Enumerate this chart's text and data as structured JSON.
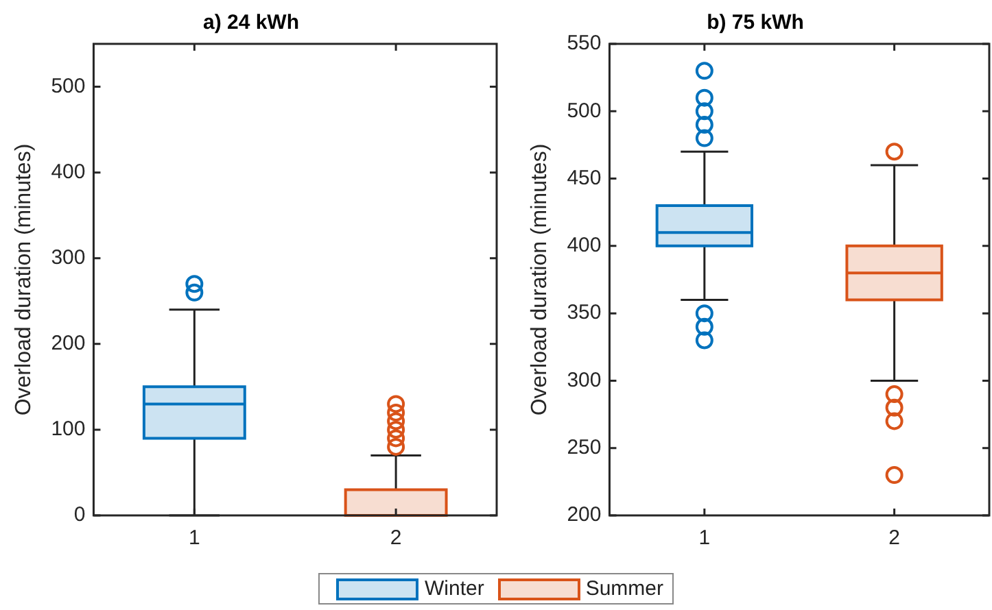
{
  "chart_data": [
    {
      "type": "box",
      "title": "a) 24 kWh",
      "ylabel": "Overload duration (minutes)",
      "categories": [
        "1",
        "2"
      ],
      "ylim": [
        0,
        550
      ],
      "yticks": [
        0,
        100,
        200,
        300,
        400,
        500
      ],
      "legend": "bottom",
      "series": [
        {
          "name": "Winter",
          "color": "#0072bd",
          "boxes": [
            {
              "low": 0,
              "q1": 90,
              "median": 130,
              "q3": 150,
              "high": 240,
              "outliers": [
                260,
                270
              ]
            },
            null
          ]
        },
        {
          "name": "Summer",
          "color": "#d95319",
          "boxes": [
            null,
            {
              "low": 0,
              "q1": 0,
              "median": 0,
              "q3": 30,
              "high": 70,
              "outliers": [
                80,
                90,
                100,
                110,
                120,
                130
              ]
            }
          ]
        }
      ]
    },
    {
      "type": "box",
      "title": "b) 75 kWh",
      "ylabel": "Overload duration (minutes)",
      "categories": [
        "1",
        "2"
      ],
      "ylim": [
        200,
        550
      ],
      "yticks": [
        200,
        250,
        300,
        350,
        400,
        450,
        500,
        550
      ],
      "series": [
        {
          "color": "#0072bd",
          "boxes": [
            {
              "low": 360,
              "q1": 400,
              "median": 410,
              "q3": 430,
              "high": 470,
              "outliers": [
                330,
                340,
                350,
                480,
                490,
                500,
                510,
                530
              ]
            },
            null
          ]
        },
        {
          "color": "#d95319",
          "boxes": [
            null,
            {
              "low": 300,
              "q1": 360,
              "median": 380,
              "q3": 400,
              "high": 460,
              "outliers": [
                230,
                270,
                280,
                290,
                470
              ]
            }
          ]
        }
      ]
    }
  ]
}
